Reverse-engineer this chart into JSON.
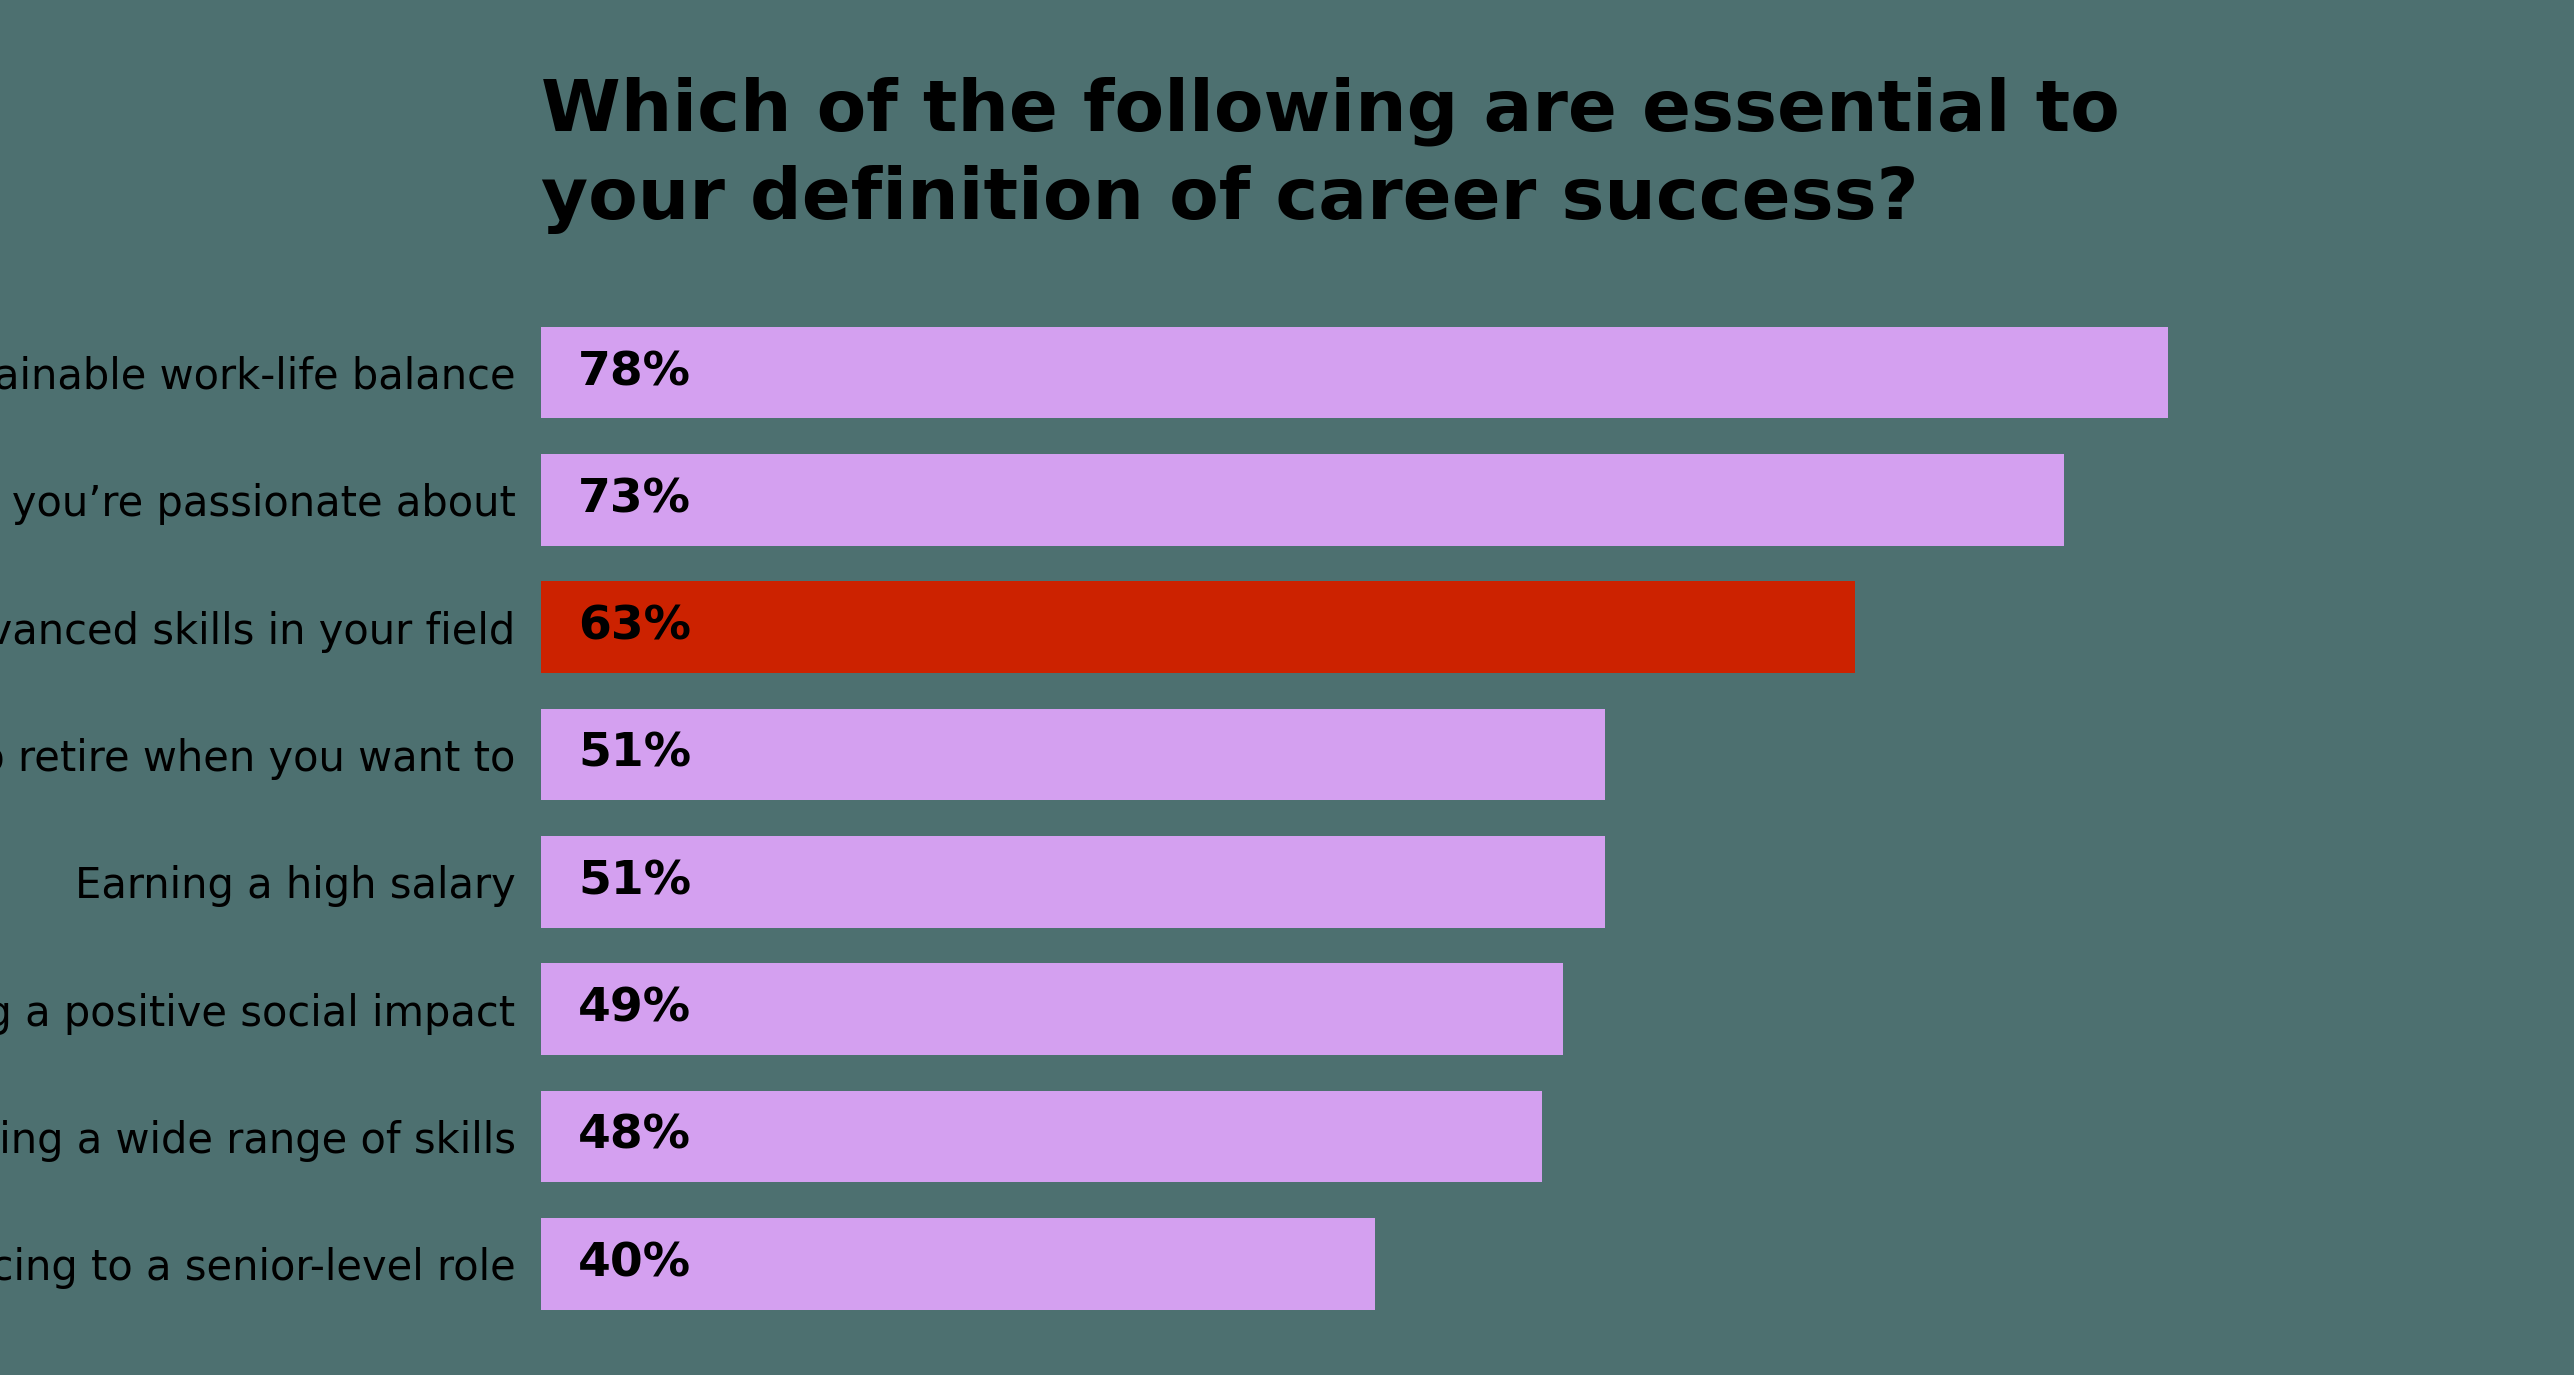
{
  "title": "Which of the following are essential to\nyour definition of career success?",
  "categories": [
    "Having a sustainable work-life balance",
    "Doing work you’re passionate about",
    "Developing advanced skills in your field",
    "Being able to retire when you want to",
    "Earning a high salary",
    "Making a positive social impact",
    "Developing a wide range of skills",
    "Advancing to a senior-level role"
  ],
  "values": [
    78,
    73,
    63,
    51,
    51,
    49,
    48,
    40
  ],
  "bar_colors": [
    "#d4a0f0",
    "#d4a0f0",
    "#cc2200",
    "#d4a0f0",
    "#d4a0f0",
    "#d4a0f0",
    "#d4a0f0",
    "#d4a0f0"
  ],
  "label_color": "#000000",
  "title_color": "#000000",
  "background_color": "#4d7070",
  "title_fontsize": 52,
  "label_fontsize": 30,
  "value_fontsize": 34,
  "xlim": [
    0,
    95
  ],
  "bar_height": 0.72
}
